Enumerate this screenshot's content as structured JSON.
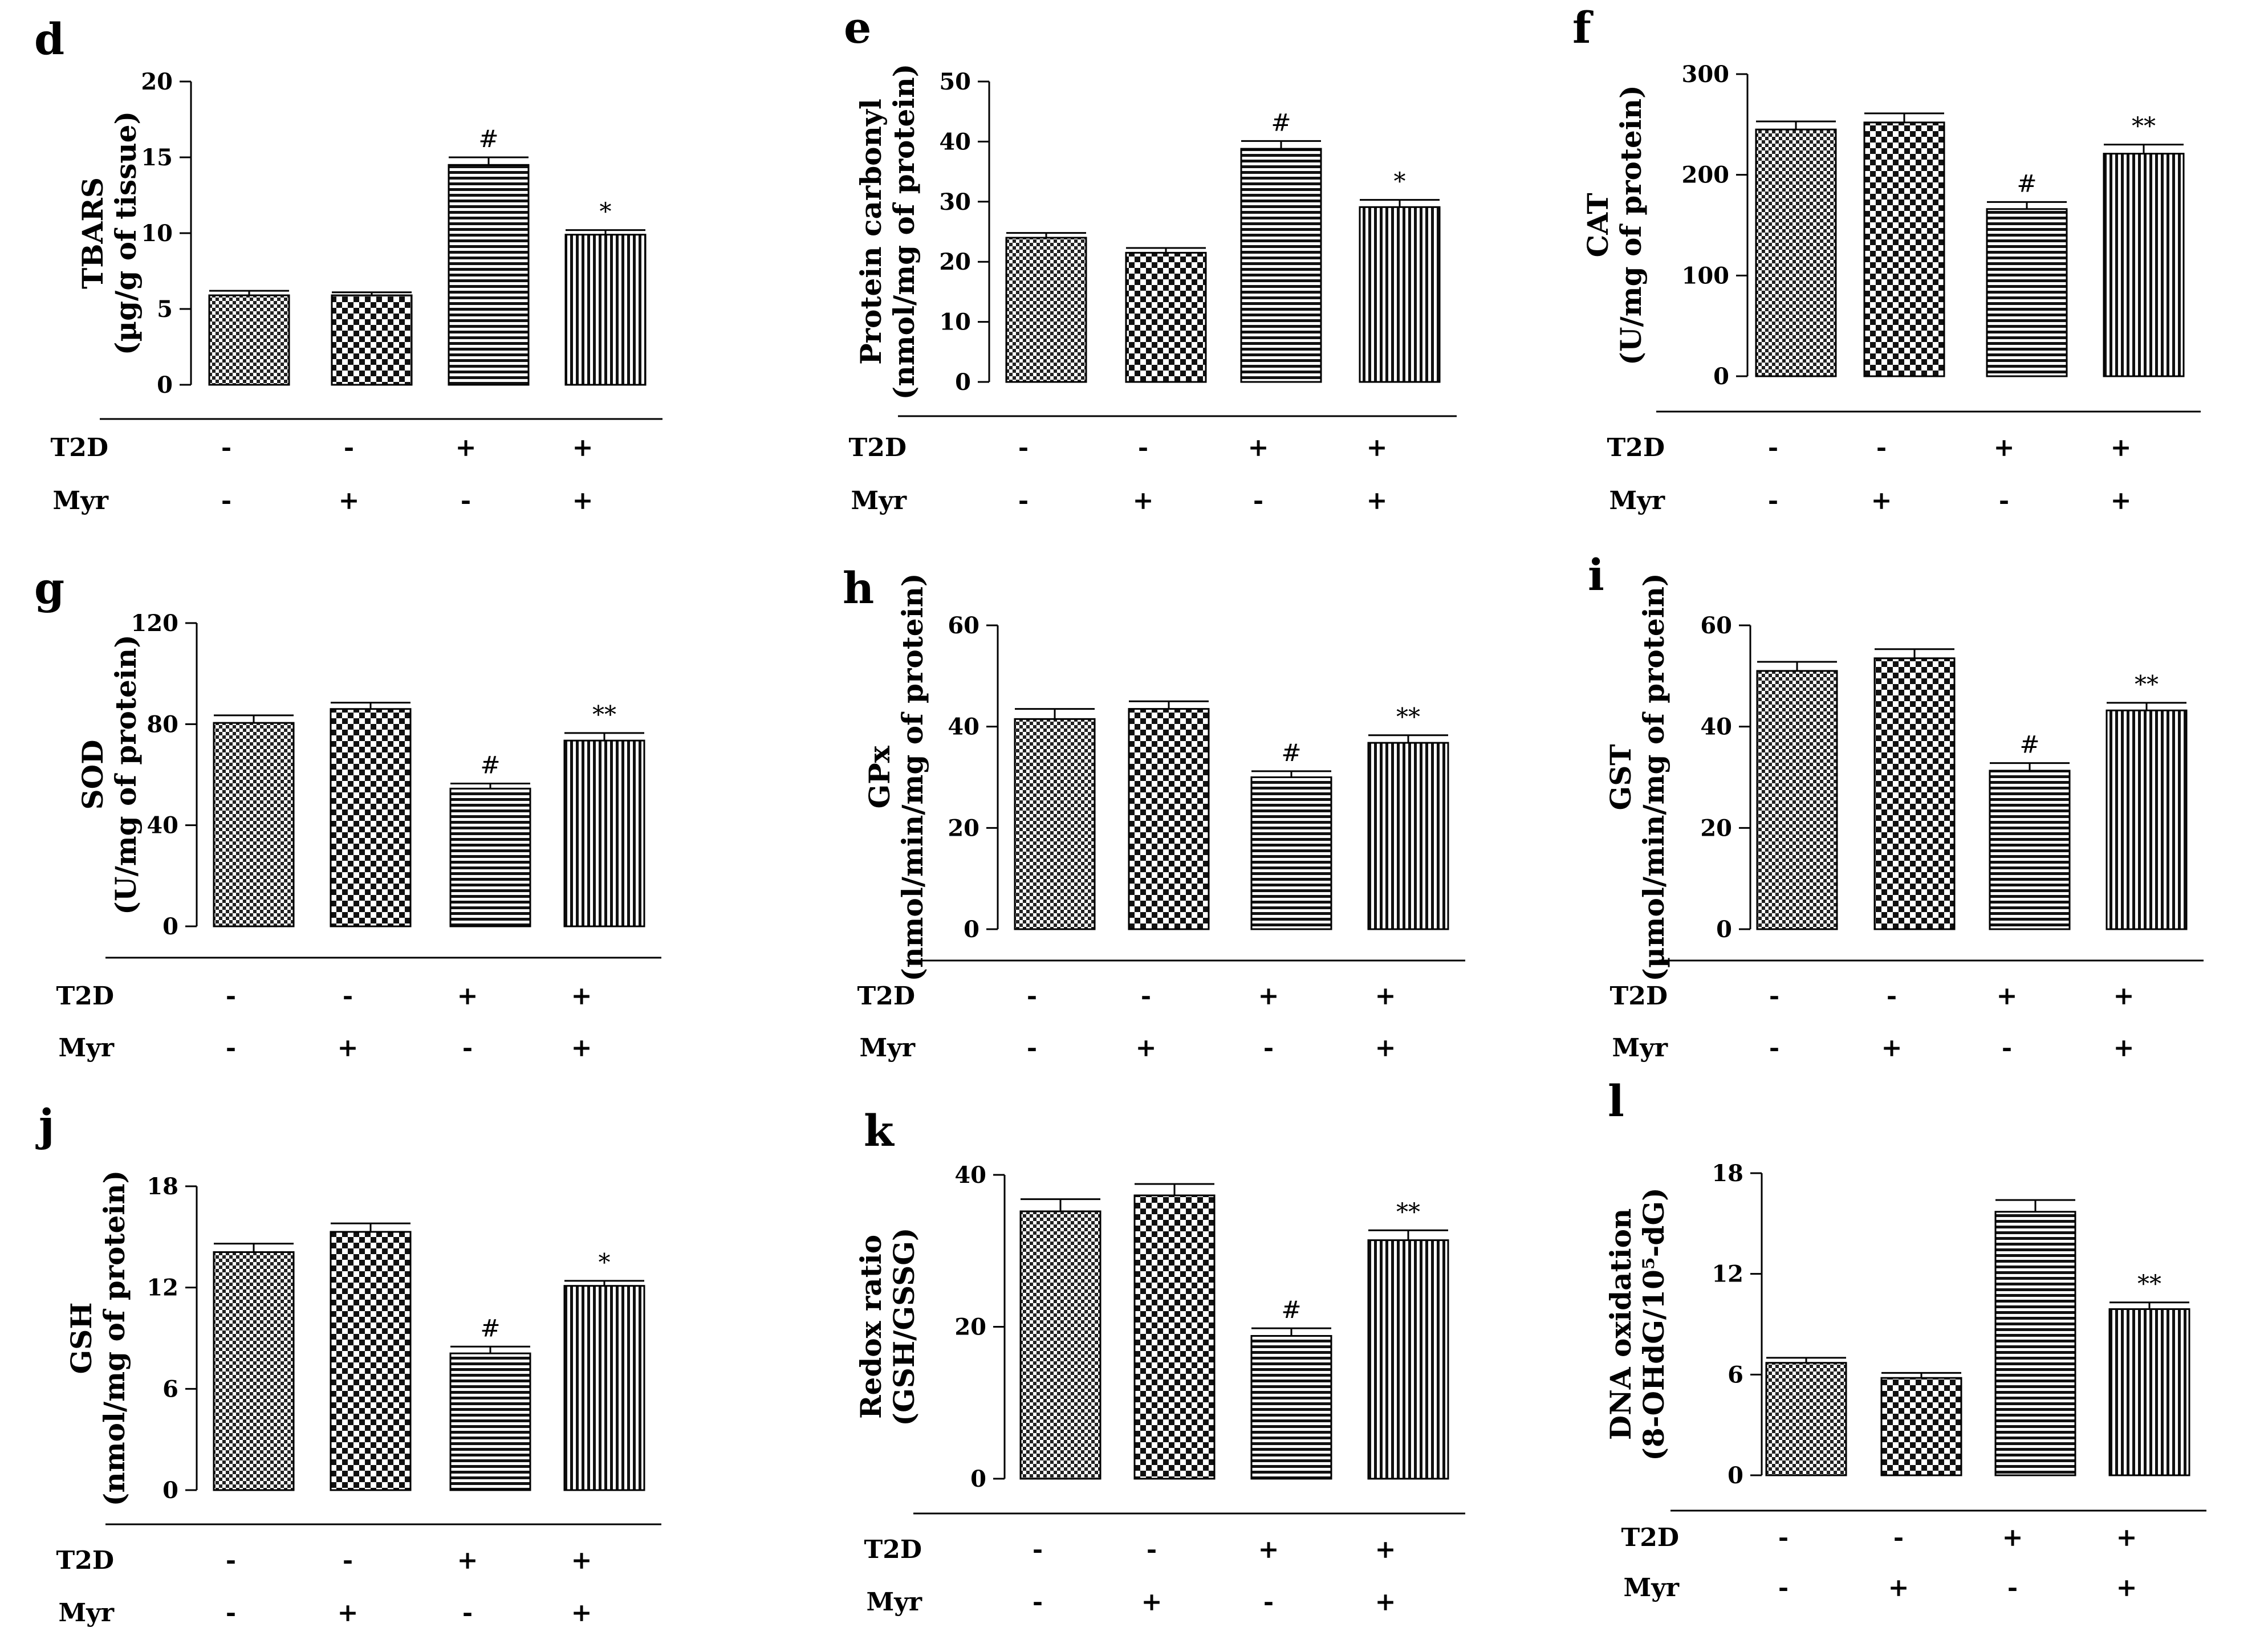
{
  "pattern_legend": {
    "bar1": "fine-checker",
    "bar2": "coarse-checker",
    "bar3": "horizontal-stripes",
    "bar4": "vertical-stripes"
  },
  "chart_data": [
    {
      "type": "bar",
      "panel": "d",
      "ylabel_lines": [
        "TBARS",
        "(µg/g of tissue)"
      ],
      "ylim": [
        0,
        20
      ],
      "yticks": [
        "0",
        "5",
        "10",
        "15",
        "20"
      ],
      "rows": [
        {
          "label": "T2D",
          "signs": [
            "-",
            "-",
            "+",
            "+"
          ]
        },
        {
          "label": "Myr",
          "signs": [
            "-",
            "+",
            "-",
            "+"
          ]
        }
      ],
      "values": [
        5.9,
        5.9,
        14.5,
        9.9
      ],
      "errors": [
        0.3,
        0.2,
        0.5,
        0.3
      ],
      "annotations": [
        "",
        "",
        "#",
        "*"
      ]
    },
    {
      "type": "bar",
      "panel": "e",
      "ylabel_lines": [
        "Protein carbonyl",
        "(nmol/mg of protein)"
      ],
      "ylim": [
        0,
        50
      ],
      "yticks": [
        "0",
        "10",
        "20",
        "30",
        "40",
        "50"
      ],
      "rows": [
        {
          "label": "T2D",
          "signs": [
            "-",
            "-",
            "+",
            "+"
          ]
        },
        {
          "label": "Myr",
          "signs": [
            "-",
            "+",
            "-",
            "+"
          ]
        }
      ],
      "values": [
        24,
        21.5,
        38.8,
        29.1
      ],
      "errors": [
        0.8,
        0.8,
        1.3,
        1.2
      ],
      "annotations": [
        "",
        "",
        "#",
        "*"
      ]
    },
    {
      "type": "bar",
      "panel": "f",
      "ylabel_lines": [
        "CAT",
        "(U/mg of protein)"
      ],
      "ylim": [
        0,
        300
      ],
      "yticks": [
        "0",
        "100",
        "200",
        "300"
      ],
      "rows": [
        {
          "label": "T2D",
          "signs": [
            "-",
            "-",
            "+",
            "+"
          ]
        },
        {
          "label": "Myr",
          "signs": [
            "-",
            "+",
            "-",
            "+"
          ]
        }
      ],
      "values": [
        245,
        252,
        166,
        221
      ],
      "errors": [
        8,
        9,
        7,
        9
      ],
      "annotations": [
        "",
        "",
        "#",
        "**"
      ]
    },
    {
      "type": "bar",
      "panel": "g",
      "ylabel_lines": [
        "SOD",
        "(U/mg of protein)"
      ],
      "ylim": [
        0,
        120
      ],
      "yticks": [
        "0",
        "40",
        "80",
        "120"
      ],
      "rows": [
        {
          "label": "T2D",
          "signs": [
            "-",
            "-",
            "+",
            "+"
          ]
        },
        {
          "label": "Myr",
          "signs": [
            "-",
            "+",
            "-",
            "+"
          ]
        }
      ],
      "values": [
        80.5,
        86,
        54.5,
        73.5
      ],
      "errors": [
        3,
        2.5,
        2,
        3
      ],
      "annotations": [
        "",
        "",
        "#",
        "**"
      ]
    },
    {
      "type": "bar",
      "panel": "h",
      "ylabel_lines": [
        "GPx",
        "(nmol/min/mg of protein)"
      ],
      "ylim": [
        0,
        60
      ],
      "yticks": [
        "0",
        "20",
        "40",
        "60"
      ],
      "rows": [
        {
          "label": "T2D",
          "signs": [
            "-",
            "-",
            "+",
            "+"
          ]
        },
        {
          "label": "Myr",
          "signs": [
            "-",
            "+",
            "-",
            "+"
          ]
        }
      ],
      "values": [
        41.5,
        43.5,
        30,
        36.8
      ],
      "errors": [
        2,
        1.5,
        1.2,
        1.5
      ],
      "annotations": [
        "",
        "",
        "#",
        "**"
      ]
    },
    {
      "type": "bar",
      "panel": "i",
      "ylabel_lines": [
        "GST",
        "(µmol/min/mg of protein)"
      ],
      "ylim": [
        0,
        60
      ],
      "yticks": [
        "0",
        "20",
        "40",
        "60"
      ],
      "rows": [
        {
          "label": "T2D",
          "signs": [
            "-",
            "-",
            "+",
            "+"
          ]
        },
        {
          "label": "Myr",
          "signs": [
            "-",
            "+",
            "-",
            "+"
          ]
        }
      ],
      "values": [
        51,
        53.5,
        31.3,
        43.2
      ],
      "errors": [
        1.8,
        1.8,
        1.5,
        1.5
      ],
      "annotations": [
        "",
        "",
        "#",
        "**"
      ]
    },
    {
      "type": "bar",
      "panel": "j",
      "ylabel_lines": [
        "GSH",
        "(nmol/mg of protein)"
      ],
      "ylim": [
        0,
        18
      ],
      "yticks": [
        "0",
        "6",
        "12",
        "18"
      ],
      "rows": [
        {
          "label": "T2D",
          "signs": [
            "-",
            "-",
            "+",
            "+"
          ]
        },
        {
          "label": "Myr",
          "signs": [
            "-",
            "+",
            "-",
            "+"
          ]
        }
      ],
      "values": [
        14.1,
        15.3,
        8.1,
        12.1
      ],
      "errors": [
        0.5,
        0.5,
        0.4,
        0.3
      ],
      "annotations": [
        "",
        "",
        "#",
        "*"
      ]
    },
    {
      "type": "bar",
      "panel": "k",
      "ylabel_lines": [
        "Redox ratio",
        "(GSH/GSSG)"
      ],
      "ylim": [
        0,
        40
      ],
      "yticks": [
        "0",
        "20",
        "40"
      ],
      "rows": [
        {
          "label": "T2D",
          "signs": [
            "-",
            "-",
            "+",
            "+"
          ]
        },
        {
          "label": "Myr",
          "signs": [
            "-",
            "+",
            "-",
            "+"
          ]
        }
      ],
      "values": [
        35.2,
        37.3,
        18.8,
        31.4
      ],
      "errors": [
        1.6,
        1.5,
        1.0,
        1.3
      ],
      "annotations": [
        "",
        "",
        "#",
        "**"
      ]
    },
    {
      "type": "bar",
      "panel": "l",
      "ylabel_lines": [
        "DNA oxidation",
        "(8-OHdG/10⁵-dG)"
      ],
      "ylim": [
        0,
        18
      ],
      "yticks": [
        "0",
        "6",
        "12",
        "18"
      ],
      "rows": [
        {
          "label": "T2D",
          "signs": [
            "-",
            "-",
            "+",
            "+"
          ]
        },
        {
          "label": "Myr",
          "signs": [
            "-",
            "+",
            "-",
            "+"
          ]
        }
      ],
      "values": [
        6.7,
        5.8,
        15.7,
        9.9
      ],
      "errors": [
        0.3,
        0.3,
        0.7,
        0.4
      ],
      "annotations": [
        "",
        "",
        "",
        "**"
      ]
    }
  ]
}
